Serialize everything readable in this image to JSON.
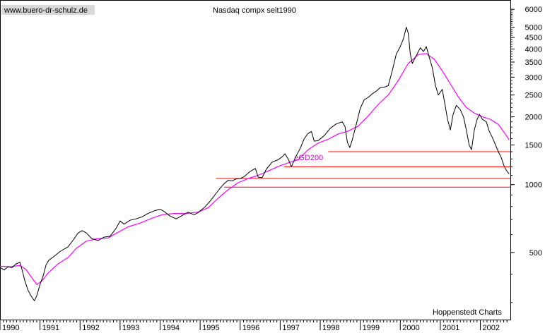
{
  "chart_data": {
    "type": "line",
    "title": "Nasdaq compx seit1990",
    "watermark": "www.buero-dr-schulz.de",
    "credit": "Hoppenstedt Charts",
    "scale": "log",
    "ylim": [
      250,
      6600
    ],
    "xlim": [
      1990.0,
      2002.75
    ],
    "y_ticks": [
      500,
      1000,
      1500,
      2000,
      2500,
      3000,
      3500,
      4000,
      4500,
      5000,
      6000
    ],
    "x_ticks": [
      "1990",
      "1991",
      "1992",
      "1993",
      "1994",
      "1995",
      "1996",
      "1997",
      "1998",
      "1999",
      "2000",
      "2001",
      "2002"
    ],
    "grid": false,
    "series": [
      {
        "name": "",
        "color": "#000000",
        "points": [
          [
            1990.0,
            430
          ],
          [
            1990.1,
            418
          ],
          [
            1990.2,
            432
          ],
          [
            1990.3,
            428
          ],
          [
            1990.4,
            445
          ],
          [
            1990.5,
            452
          ],
          [
            1990.55,
            420
          ],
          [
            1990.62,
            375
          ],
          [
            1990.7,
            340
          ],
          [
            1990.78,
            320
          ],
          [
            1990.86,
            305
          ],
          [
            1990.92,
            322
          ],
          [
            1991.0,
            360
          ],
          [
            1991.08,
            395
          ],
          [
            1991.15,
            440
          ],
          [
            1991.22,
            462
          ],
          [
            1991.35,
            480
          ],
          [
            1991.5,
            505
          ],
          [
            1991.7,
            530
          ],
          [
            1991.85,
            575
          ],
          [
            1991.95,
            610
          ],
          [
            1992.05,
            625
          ],
          [
            1992.15,
            612
          ],
          [
            1992.3,
            575
          ],
          [
            1992.45,
            565
          ],
          [
            1992.6,
            585
          ],
          [
            1992.75,
            590
          ],
          [
            1992.9,
            640
          ],
          [
            1993.0,
            690
          ],
          [
            1993.1,
            668
          ],
          [
            1993.25,
            695
          ],
          [
            1993.4,
            705
          ],
          [
            1993.55,
            720
          ],
          [
            1993.7,
            745
          ],
          [
            1993.85,
            765
          ],
          [
            1994.0,
            778
          ],
          [
            1994.1,
            760
          ],
          [
            1994.25,
            725
          ],
          [
            1994.4,
            705
          ],
          [
            1994.55,
            730
          ],
          [
            1994.7,
            755
          ],
          [
            1994.85,
            735
          ],
          [
            1994.95,
            752
          ],
          [
            1995.1,
            790
          ],
          [
            1995.25,
            845
          ],
          [
            1995.4,
            915
          ],
          [
            1995.5,
            965
          ],
          [
            1995.6,
            1010
          ],
          [
            1995.7,
            1045
          ],
          [
            1995.8,
            1040
          ],
          [
            1995.9,
            1060
          ],
          [
            1996.0,
            1065
          ],
          [
            1996.1,
            1085
          ],
          [
            1996.25,
            1145
          ],
          [
            1996.38,
            1180
          ],
          [
            1996.45,
            1080
          ],
          [
            1996.55,
            1075
          ],
          [
            1996.65,
            1170
          ],
          [
            1996.8,
            1260
          ],
          [
            1996.95,
            1290
          ],
          [
            1997.05,
            1330
          ],
          [
            1997.12,
            1370
          ],
          [
            1997.2,
            1300
          ],
          [
            1997.28,
            1200
          ],
          [
            1997.38,
            1320
          ],
          [
            1997.5,
            1450
          ],
          [
            1997.6,
            1600
          ],
          [
            1997.7,
            1690
          ],
          [
            1997.78,
            1720
          ],
          [
            1997.85,
            1560
          ],
          [
            1997.95,
            1570
          ],
          [
            1998.1,
            1650
          ],
          [
            1998.25,
            1780
          ],
          [
            1998.4,
            1860
          ],
          [
            1998.55,
            1900
          ],
          [
            1998.62,
            1810
          ],
          [
            1998.68,
            1540
          ],
          [
            1998.74,
            1460
          ],
          [
            1998.8,
            1580
          ],
          [
            1998.9,
            1850
          ],
          [
            1999.0,
            2180
          ],
          [
            1999.1,
            2380
          ],
          [
            1999.2,
            2440
          ],
          [
            1999.3,
            2530
          ],
          [
            1999.4,
            2600
          ],
          [
            1999.5,
            2700
          ],
          [
            1999.6,
            2710
          ],
          [
            1999.7,
            2750
          ],
          [
            1999.8,
            3200
          ],
          [
            1999.9,
            3800
          ],
          [
            2000.0,
            4100
          ],
          [
            2000.08,
            4450
          ],
          [
            2000.15,
            5000
          ],
          [
            2000.2,
            4700
          ],
          [
            2000.25,
            3800
          ],
          [
            2000.3,
            3450
          ],
          [
            2000.35,
            3600
          ],
          [
            2000.42,
            3800
          ],
          [
            2000.5,
            4050
          ],
          [
            2000.58,
            3900
          ],
          [
            2000.65,
            4100
          ],
          [
            2000.72,
            3700
          ],
          [
            2000.8,
            3300
          ],
          [
            2000.88,
            2750
          ],
          [
            2000.95,
            2500
          ],
          [
            2001.05,
            2650
          ],
          [
            2001.12,
            2250
          ],
          [
            2001.18,
            1950
          ],
          [
            2001.25,
            1750
          ],
          [
            2001.32,
            2050
          ],
          [
            2001.4,
            2250
          ],
          [
            2001.5,
            2150
          ],
          [
            2001.58,
            2000
          ],
          [
            2001.65,
            1750
          ],
          [
            2001.72,
            1500
          ],
          [
            2001.78,
            1430
          ],
          [
            2001.85,
            1750
          ],
          [
            2001.92,
            1950
          ],
          [
            2001.98,
            2050
          ],
          [
            2002.05,
            1950
          ],
          [
            2002.15,
            1900
          ],
          [
            2002.22,
            1730
          ],
          [
            2002.3,
            1620
          ],
          [
            2002.38,
            1500
          ],
          [
            2002.45,
            1400
          ],
          [
            2002.52,
            1320
          ],
          [
            2002.6,
            1200
          ],
          [
            2002.66,
            1150
          ],
          [
            2002.72,
            1115
          ]
        ]
      },
      {
        "name": "eGD200",
        "color": "#ff00ff",
        "points": [
          [
            1990.0,
            435
          ],
          [
            1990.25,
            432
          ],
          [
            1990.5,
            438
          ],
          [
            1990.65,
            420
          ],
          [
            1990.8,
            385
          ],
          [
            1990.92,
            360
          ],
          [
            1991.05,
            375
          ],
          [
            1991.2,
            405
          ],
          [
            1991.45,
            445
          ],
          [
            1991.7,
            475
          ],
          [
            1991.9,
            520
          ],
          [
            1992.15,
            560
          ],
          [
            1992.4,
            575
          ],
          [
            1992.7,
            580
          ],
          [
            1992.95,
            615
          ],
          [
            1993.2,
            650
          ],
          [
            1993.5,
            675
          ],
          [
            1993.8,
            710
          ],
          [
            1994.05,
            735
          ],
          [
            1994.35,
            745
          ],
          [
            1994.65,
            745
          ],
          [
            1994.95,
            755
          ],
          [
            1995.2,
            790
          ],
          [
            1995.45,
            870
          ],
          [
            1995.7,
            950
          ],
          [
            1995.95,
            1020
          ],
          [
            1996.2,
            1065
          ],
          [
            1996.45,
            1100
          ],
          [
            1996.7,
            1150
          ],
          [
            1996.95,
            1205
          ],
          [
            1997.2,
            1250
          ],
          [
            1997.45,
            1290
          ],
          [
            1997.7,
            1430
          ],
          [
            1997.95,
            1530
          ],
          [
            1998.2,
            1590
          ],
          [
            1998.45,
            1680
          ],
          [
            1998.7,
            1730
          ],
          [
            1998.95,
            1820
          ],
          [
            1999.2,
            2020
          ],
          [
            1999.45,
            2270
          ],
          [
            1999.7,
            2500
          ],
          [
            1999.95,
            2900
          ],
          [
            2000.2,
            3450
          ],
          [
            2000.45,
            3780
          ],
          [
            2000.65,
            3820
          ],
          [
            2000.85,
            3600
          ],
          [
            2001.05,
            3200
          ],
          [
            2001.25,
            2800
          ],
          [
            2001.45,
            2450
          ],
          [
            2001.65,
            2200
          ],
          [
            2001.85,
            2080
          ],
          [
            2002.05,
            2000
          ],
          [
            2002.25,
            1950
          ],
          [
            2002.45,
            1850
          ],
          [
            2002.6,
            1700
          ],
          [
            2002.72,
            1580
          ]
        ]
      }
    ],
    "support_lines": [
      {
        "from": 1998.2,
        "value": 1400
      },
      {
        "from": 1997.1,
        "value": 1200
      },
      {
        "from": 1995.4,
        "value": 1065
      },
      {
        "from": 1995.6,
        "value": 975
      }
    ],
    "annotations": [
      {
        "text": "eGD200",
        "x": 1997.35,
        "y": 1250,
        "color": "#cc00cc"
      }
    ]
  }
}
